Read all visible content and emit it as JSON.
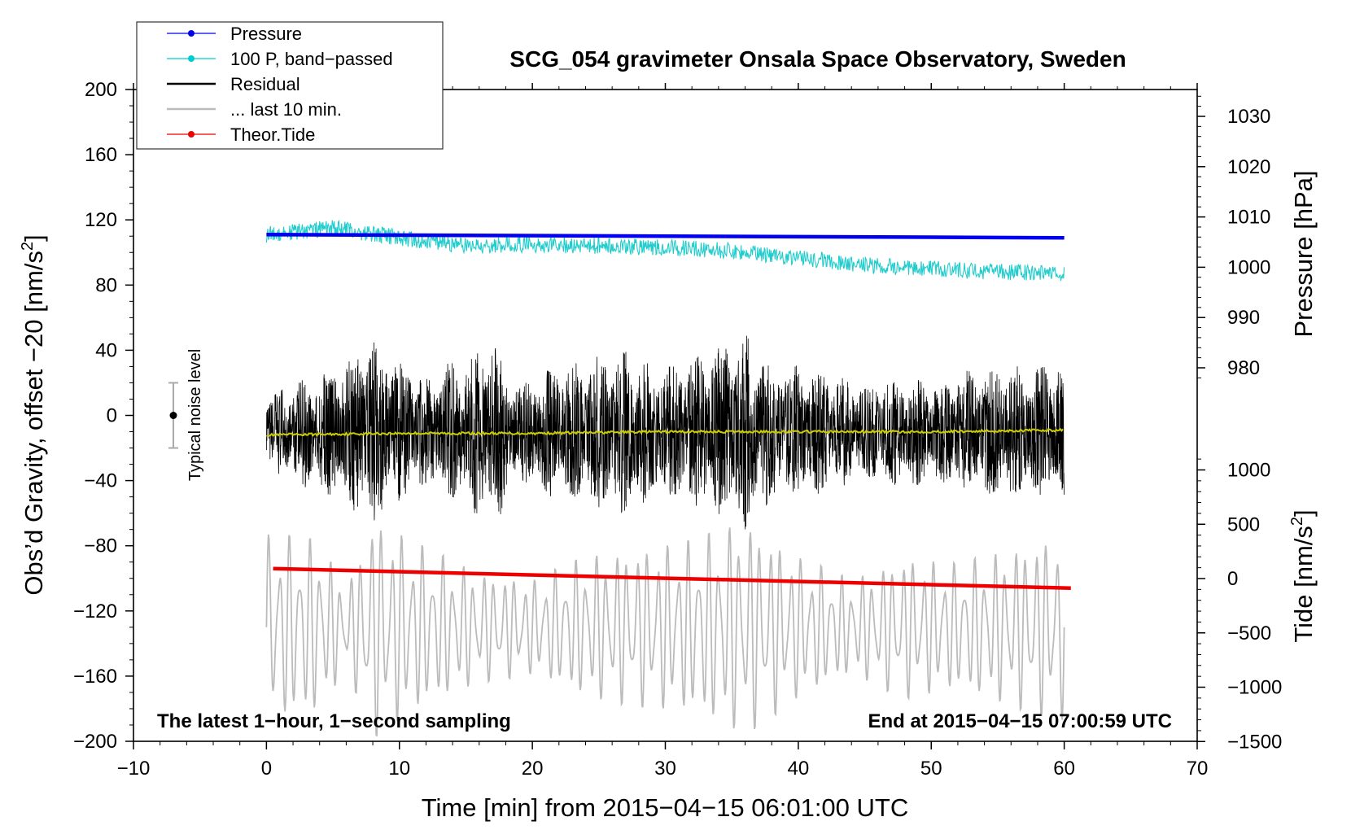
{
  "chart_data": {
    "type": "line",
    "title": "SCG_054 gravimeter Onsala Space Observatory, Sweden",
    "xlabel": "Time [min] from 2015−04−15 06:01:00 UTC",
    "ylabel_left": "Obs’d Gravity, offset −20 [nm/s",
    "ylabel_left_sup": "2",
    "ylabel_left_end": "]",
    "ylabel_right_pressure": "Pressure [hPa]",
    "ylabel_right_tide": "Tide [nm/s",
    "ylabel_right_tide_sup": "2",
    "ylabel_right_tide_end": "]",
    "annotation_left": "The latest 1−hour, 1−second sampling",
    "annotation_right": "End at 2015−04−15 07:00:59 UTC",
    "noise_label": "Typical noise level",
    "noise_bar": {
      "x": -7,
      "center": 0,
      "half_range": 20
    },
    "xlim": [
      -10,
      70
    ],
    "ylim_left": [
      -200,
      200
    ],
    "ylim_pressure": [
      965,
      1035
    ],
    "ylim_tide": [
      -1500,
      2000
    ],
    "x_ticks": [
      -10,
      0,
      10,
      20,
      30,
      40,
      50,
      60,
      70
    ],
    "x_tick_labels": [
      "−10",
      "0",
      "10",
      "20",
      "30",
      "40",
      "50",
      "60",
      "70"
    ],
    "y_left_ticks": [
      200,
      160,
      120,
      80,
      40,
      0,
      -40,
      -80,
      -120,
      -160,
      -200
    ],
    "y_left_tick_labels": [
      "200",
      "160",
      "120",
      "80",
      "40",
      "0",
      "−40",
      "−80",
      "−120",
      "−160",
      "−200"
    ],
    "y_pressure_ticks": [
      1030,
      1020,
      1010,
      1000,
      990,
      980
    ],
    "y_pressure_tick_labels": [
      "1030",
      "1020",
      "1010",
      "1000",
      "990",
      "980"
    ],
    "y_tide_ticks": [
      1000,
      500,
      0,
      -500,
      -1000,
      -1500
    ],
    "y_tide_tick_labels": [
      "1000",
      "500",
      "0",
      "−500",
      "−1000",
      "−1500"
    ],
    "legend_position": "top-left",
    "legend": [
      {
        "label": "Pressure",
        "color": "#0000ee",
        "marker": true
      },
      {
        "label": "100 P, band−passed",
        "color": "#00cccc",
        "marker": true
      },
      {
        "label": "Residual",
        "color": "#000000",
        "marker": false
      },
      {
        "label": "... last 10 min.",
        "color": "#bbbbbb",
        "marker": false
      },
      {
        "label": "Theor.Tide",
        "color": "#ee0000",
        "marker": true
      }
    ],
    "series": [
      {
        "name": "Pressure",
        "color": "#0000ee",
        "axis": "left",
        "x": [
          0,
          60
        ],
        "y": [
          111,
          109
        ],
        "style": "thick"
      },
      {
        "name": "100 P, band−passed",
        "color": "#22cccc",
        "axis": "left",
        "x": [
          0,
          5,
          10,
          15,
          20,
          25,
          30,
          35,
          40,
          45,
          50,
          55,
          60
        ],
        "y": [
          111,
          115,
          109,
          104,
          105,
          104,
          103,
          101,
          97,
          92,
          90,
          88,
          87
        ],
        "noise_amplitude": 5
      },
      {
        "name": "Residual",
        "color": "#000000",
        "axis": "left",
        "x": [
          0,
          60
        ],
        "y": [
          -10,
          -10
        ],
        "envelope_x": [
          0,
          3,
          5,
          8,
          10,
          12,
          14,
          17,
          19,
          21,
          24,
          27,
          30,
          33,
          36,
          38,
          40,
          42,
          45,
          48,
          50,
          52,
          55,
          57,
          60
        ],
        "envelope_amp": [
          22,
          35,
          40,
          58,
          45,
          35,
          45,
          60,
          30,
          40,
          45,
          52,
          40,
          50,
          62,
          45,
          42,
          38,
          30,
          35,
          32,
          38,
          42,
          40,
          45
        ]
      },
      {
        "name": "Residual mean",
        "color": "#cccc00",
        "axis": "left",
        "x": [
          0,
          10,
          20,
          30,
          40,
          50,
          60
        ],
        "y": [
          -12,
          -11,
          -11,
          -10,
          -10,
          -10,
          -9
        ]
      },
      {
        "name": "... last 10 min.",
        "color": "#bbbbbb",
        "axis": "left",
        "x": [
          0,
          60
        ],
        "y": [
          -130,
          -130
        ],
        "envelope_x": [
          0,
          4,
          6,
          8,
          12,
          16,
          20,
          24,
          28,
          32,
          36,
          40,
          44,
          48,
          52,
          56,
          60
        ],
        "envelope_amp": [
          60,
          55,
          25,
          70,
          50,
          35,
          30,
          45,
          50,
          55,
          68,
          45,
          30,
          45,
          40,
          50,
          60
        ]
      },
      {
        "name": "Theor.Tide",
        "color": "#ee0000",
        "axis": "left",
        "x": [
          0.5,
          60.5
        ],
        "y": [
          -94,
          -106
        ],
        "style": "thick"
      }
    ]
  }
}
